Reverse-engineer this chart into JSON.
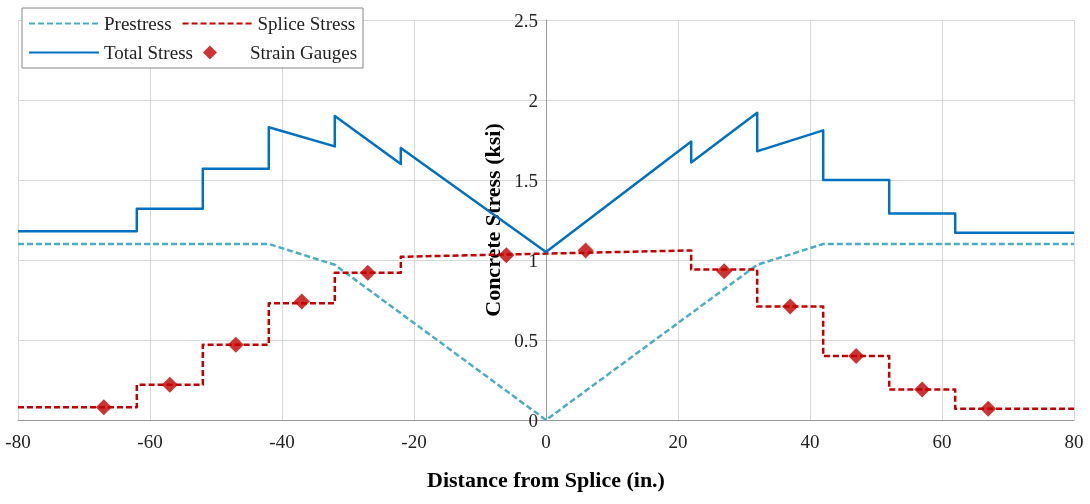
{
  "chart_data": {
    "type": "line",
    "xlabel": "Distance from Splice (in.)",
    "ylabel": "Concrete Stress (ksi)",
    "xlim": [
      -80,
      80
    ],
    "xticks": [
      -80,
      -60,
      -40,
      -20,
      0,
      20,
      40,
      60,
      80
    ],
    "ylim": [
      0,
      2.5
    ],
    "yticks": [
      0,
      0.5,
      1,
      1.5,
      2,
      2.5
    ],
    "grid": true,
    "legend": "top left",
    "marker": "none",
    "series": [
      {
        "name": "Prestress",
        "color": "#4bacc6",
        "line_style": "dashed",
        "x": [
          -80,
          -42,
          -32,
          0,
          32,
          42,
          80
        ],
        "values": [
          1.1,
          1.1,
          0.97,
          0,
          0.97,
          1.1,
          1.1
        ]
      },
      {
        "name": "Splice Stress",
        "color": "#c00000",
        "line_style": "dashed",
        "x": [
          -80,
          -62,
          -62,
          -52,
          -52,
          -42,
          -42,
          -32,
          -32,
          -22,
          -22,
          0,
          22,
          22,
          32,
          32,
          42,
          42,
          52,
          52,
          62,
          62,
          80
        ],
        "values": [
          0.08,
          0.08,
          0.22,
          0.22,
          0.47,
          0.47,
          0.73,
          0.73,
          0.92,
          0.92,
          1.02,
          1.04,
          1.06,
          0.94,
          0.94,
          0.71,
          0.71,
          0.4,
          0.4,
          0.19,
          0.19,
          0.07,
          0.07
        ]
      },
      {
        "name": "Total Stress",
        "color": "#0070c0",
        "line_style": "solid",
        "x": [
          -80,
          -62,
          -62,
          -52,
          -52,
          -42,
          -42,
          -32,
          -32,
          -22,
          -22,
          0,
          22,
          22,
          32,
          32,
          42,
          42,
          52,
          52,
          62,
          62,
          80
        ],
        "values": [
          1.18,
          1.18,
          1.32,
          1.32,
          1.57,
          1.57,
          1.83,
          1.71,
          1.9,
          1.6,
          1.7,
          1.05,
          1.74,
          1.61,
          1.92,
          1.68,
          1.81,
          1.5,
          1.5,
          1.29,
          1.29,
          1.17,
          1.17
        ]
      },
      {
        "name": "Strain Gauges",
        "type": "scatter",
        "marker": "diamond",
        "color": "#c00000",
        "x": [
          -67,
          -57,
          -47,
          -37,
          -27,
          -6,
          6,
          27,
          37,
          47,
          57,
          67
        ],
        "values": [
          0.08,
          0.22,
          0.47,
          0.74,
          0.92,
          1.03,
          1.06,
          0.93,
          0.71,
          0.4,
          0.19,
          0.07
        ]
      }
    ]
  }
}
